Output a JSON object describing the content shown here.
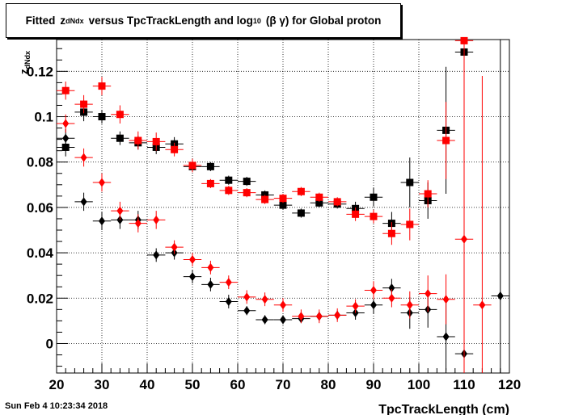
{
  "title": {
    "prefix": "Fitted",
    "z": "z",
    "z_sub": "dNdx",
    "middle": "versus TpcTrackLength and log",
    "log_sub": "10",
    "suffix": "(β γ) for Global proton"
  },
  "footer": {
    "date": "Sun Feb  4 10:23:34 2018"
  },
  "colors": {
    "series_black": "#000000",
    "series_red": "#ff0000",
    "grid": "#000000"
  },
  "chart_data": {
    "type": "scatter",
    "title": "Fitted zdNdx versus TpcTrackLength and log10 (β γ) for Global proton",
    "xlabel": "TpcTrackLength (cm)",
    "ylabel": "z_dNdx",
    "xlim": [
      20,
      120
    ],
    "ylim": [
      -0.013,
      0.134
    ],
    "grid": true,
    "x_ticks": [
      20,
      30,
      40,
      50,
      60,
      70,
      80,
      90,
      100,
      110,
      120
    ],
    "y_ticks": [
      0,
      0.02,
      0.04,
      0.06,
      0.08,
      0.1,
      0.12
    ],
    "y_tick_labels": [
      "0",
      "0.02",
      "0.04",
      "0.06",
      "0.08",
      "0.1",
      "0.12"
    ],
    "x_error": 2,
    "series": [
      {
        "marker": "square",
        "color": "#000000",
        "points": [
          {
            "x": 22,
            "y": 0.0865,
            "e": 0.004
          },
          {
            "x": 26,
            "y": 0.102,
            "e": 0.004
          },
          {
            "x": 30,
            "y": 0.1,
            "e": 0.003
          },
          {
            "x": 34,
            "y": 0.0905,
            "e": 0.003
          },
          {
            "x": 38,
            "y": 0.0885,
            "e": 0.003
          },
          {
            "x": 42,
            "y": 0.0865,
            "e": 0.003
          },
          {
            "x": 46,
            "y": 0.088,
            "e": 0.003
          },
          {
            "x": 50,
            "y": 0.078,
            "e": 0.002
          },
          {
            "x": 54,
            "y": 0.078,
            "e": 0.002
          },
          {
            "x": 58,
            "y": 0.072,
            "e": 0.002
          },
          {
            "x": 62,
            "y": 0.0715,
            "e": 0.002
          },
          {
            "x": 66,
            "y": 0.0655,
            "e": 0.002
          },
          {
            "x": 70,
            "y": 0.061,
            "e": 0.002
          },
          {
            "x": 74,
            "y": 0.0575,
            "e": 0.002
          },
          {
            "x": 78,
            "y": 0.062,
            "e": 0.002
          },
          {
            "x": 82,
            "y": 0.0615,
            "e": 0.002
          },
          {
            "x": 86,
            "y": 0.0595,
            "e": 0.003
          },
          {
            "x": 90,
            "y": 0.0645,
            "e": 0.004
          },
          {
            "x": 94,
            "y": 0.053,
            "e": 0.005
          },
          {
            "x": 98,
            "y": 0.071,
            "e": 0.011
          },
          {
            "x": 102,
            "y": 0.063,
            "e": 0.008
          },
          {
            "x": 106,
            "y": 0.094,
            "e": 0.028
          },
          {
            "x": 110,
            "y": 0.1285,
            "e": 0.05
          }
        ]
      },
      {
        "marker": "square",
        "color": "#ff0000",
        "points": [
          {
            "x": 22,
            "y": 0.1115,
            "e": 0.004
          },
          {
            "x": 26,
            "y": 0.1055,
            "e": 0.004
          },
          {
            "x": 30,
            "y": 0.1135,
            "e": 0.004
          },
          {
            "x": 34,
            "y": 0.101,
            "e": 0.004
          },
          {
            "x": 38,
            "y": 0.0895,
            "e": 0.004
          },
          {
            "x": 42,
            "y": 0.089,
            "e": 0.004
          },
          {
            "x": 46,
            "y": 0.0855,
            "e": 0.003
          },
          {
            "x": 50,
            "y": 0.0785,
            "e": 0.003
          },
          {
            "x": 54,
            "y": 0.0705,
            "e": 0.002
          },
          {
            "x": 58,
            "y": 0.0675,
            "e": 0.002
          },
          {
            "x": 62,
            "y": 0.0665,
            "e": 0.002
          },
          {
            "x": 66,
            "y": 0.0635,
            "e": 0.002
          },
          {
            "x": 70,
            "y": 0.064,
            "e": 0.002
          },
          {
            "x": 74,
            "y": 0.067,
            "e": 0.002
          },
          {
            "x": 78,
            "y": 0.0645,
            "e": 0.002
          },
          {
            "x": 82,
            "y": 0.0625,
            "e": 0.002
          },
          {
            "x": 86,
            "y": 0.057,
            "e": 0.003
          },
          {
            "x": 90,
            "y": 0.056,
            "e": 0.003
          },
          {
            "x": 94,
            "y": 0.0485,
            "e": 0.005
          },
          {
            "x": 98,
            "y": 0.0525,
            "e": 0.007
          },
          {
            "x": 102,
            "y": 0.066,
            "e": 0.006
          },
          {
            "x": 106,
            "y": 0.0895,
            "e": 0.017
          },
          {
            "x": 110,
            "y": 0.1335,
            "e": 0.012
          }
        ]
      },
      {
        "marker": "diamond",
        "color": "#000000",
        "points": [
          {
            "x": 22,
            "y": 0.0905,
            "e": 0.004
          },
          {
            "x": 26,
            "y": 0.0625,
            "e": 0.004
          },
          {
            "x": 30,
            "y": 0.054,
            "e": 0.004
          },
          {
            "x": 34,
            "y": 0.0545,
            "e": 0.004
          },
          {
            "x": 38,
            "y": 0.0545,
            "e": 0.004
          },
          {
            "x": 42,
            "y": 0.039,
            "e": 0.003
          },
          {
            "x": 46,
            "y": 0.04,
            "e": 0.003
          },
          {
            "x": 50,
            "y": 0.0295,
            "e": 0.003
          },
          {
            "x": 54,
            "y": 0.026,
            "e": 0.003
          },
          {
            "x": 58,
            "y": 0.0185,
            "e": 0.003
          },
          {
            "x": 62,
            "y": 0.0145,
            "e": 0.002
          },
          {
            "x": 66,
            "y": 0.0105,
            "e": 0.002
          },
          {
            "x": 70,
            "y": 0.0105,
            "e": 0.002
          },
          {
            "x": 74,
            "y": 0.011,
            "e": 0.002
          },
          {
            "x": 78,
            "y": 0.012,
            "e": 0.002
          },
          {
            "x": 82,
            "y": 0.0125,
            "e": 0.002
          },
          {
            "x": 86,
            "y": 0.0135,
            "e": 0.003
          },
          {
            "x": 90,
            "y": 0.017,
            "e": 0.004
          },
          {
            "x": 94,
            "y": 0.0245,
            "e": 0.004
          },
          {
            "x": 98,
            "y": 0.0135,
            "e": 0.007
          },
          {
            "x": 102,
            "y": 0.015,
            "e": 0.008
          },
          {
            "x": 106,
            "y": 0.003,
            "e": 0.015
          },
          {
            "x": 110,
            "y": -0.0045,
            "e": 0.02
          },
          {
            "x": 118,
            "y": 0.021,
            "e": 0.138
          }
        ]
      },
      {
        "marker": "diamond",
        "color": "#ff0000",
        "points": [
          {
            "x": 22,
            "y": 0.097,
            "e": 0.004
          },
          {
            "x": 26,
            "y": 0.082,
            "e": 0.004
          },
          {
            "x": 30,
            "y": 0.071,
            "e": 0.004
          },
          {
            "x": 34,
            "y": 0.0585,
            "e": 0.004
          },
          {
            "x": 38,
            "y": 0.053,
            "e": 0.004
          },
          {
            "x": 42,
            "y": 0.0545,
            "e": 0.004
          },
          {
            "x": 46,
            "y": 0.0425,
            "e": 0.003
          },
          {
            "x": 50,
            "y": 0.037,
            "e": 0.003
          },
          {
            "x": 54,
            "y": 0.0335,
            "e": 0.003
          },
          {
            "x": 58,
            "y": 0.027,
            "e": 0.003
          },
          {
            "x": 62,
            "y": 0.0205,
            "e": 0.003
          },
          {
            "x": 66,
            "y": 0.0195,
            "e": 0.003
          },
          {
            "x": 70,
            "y": 0.017,
            "e": 0.003
          },
          {
            "x": 74,
            "y": 0.012,
            "e": 0.003
          },
          {
            "x": 78,
            "y": 0.012,
            "e": 0.003
          },
          {
            "x": 82,
            "y": 0.0125,
            "e": 0.003
          },
          {
            "x": 86,
            "y": 0.0165,
            "e": 0.003
          },
          {
            "x": 90,
            "y": 0.0235,
            "e": 0.004
          },
          {
            "x": 94,
            "y": 0.02,
            "e": 0.004
          },
          {
            "x": 98,
            "y": 0.017,
            "e": 0.006
          },
          {
            "x": 102,
            "y": 0.022,
            "e": 0.008
          },
          {
            "x": 106,
            "y": 0.0195,
            "e": 0.011
          },
          {
            "x": 110,
            "y": 0.046,
            "e": 0.078
          },
          {
            "x": 114,
            "y": 0.017,
            "e": 0.101
          }
        ]
      }
    ]
  }
}
